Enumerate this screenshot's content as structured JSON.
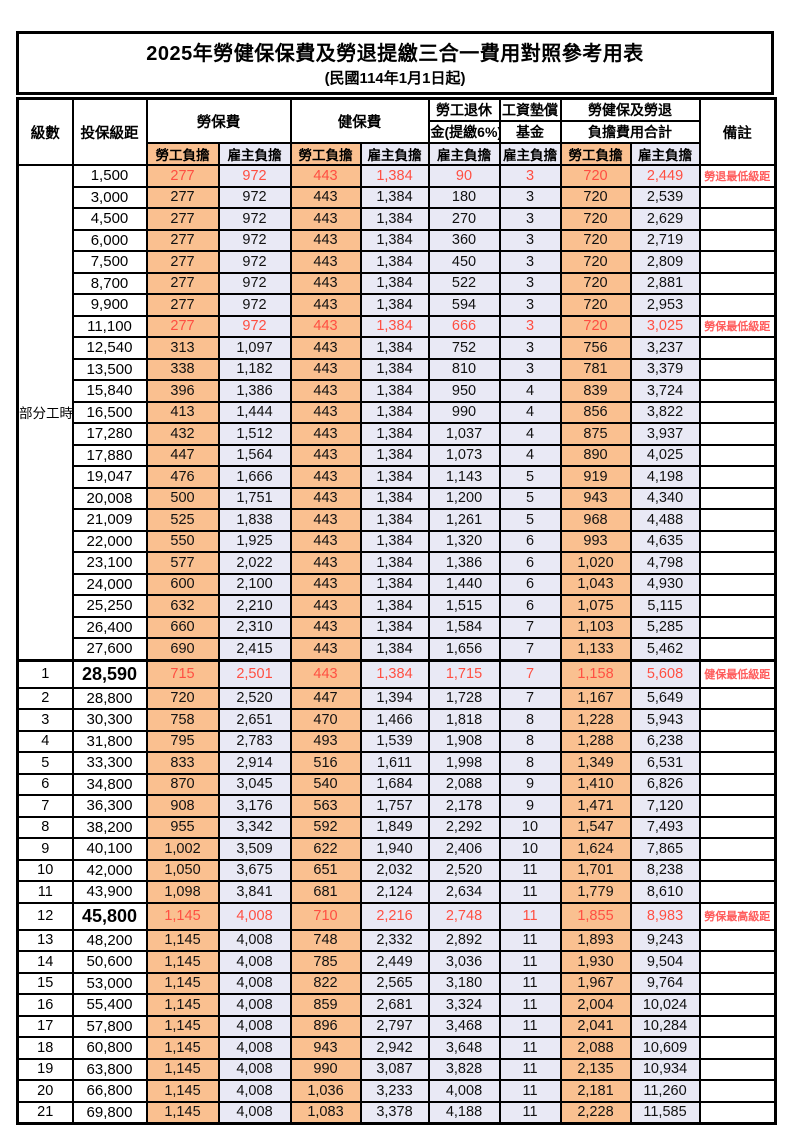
{
  "page": {
    "title": "2025年勞健保保費及勞退提繳三合一費用對照參考用表",
    "subtitle": "(民國114年1月1日起)"
  },
  "colors": {
    "employee_fill": "#FAC090",
    "employer_fill": "#E9E9F5",
    "highlight_text": "#FF4F42",
    "remark_text": "#FF5C5C",
    "border": "#000000"
  },
  "header": {
    "level": "級數",
    "bracket": "投保級距",
    "labor_insurance": "勞保費",
    "health_insurance": "健保費",
    "pension_line1": "勞工退休",
    "pension_line2": "金(提繳6%)",
    "wage_fund_line1": "工資墊償",
    "wage_fund_line2": "基金",
    "total_line1": "勞健保及勞退",
    "total_line2": "負擔費用合計",
    "remark": "備註",
    "employee": "勞工負擔",
    "employer": "雇主負擔"
  },
  "part_time_label": "部分工時",
  "part_time_rowspan": 23,
  "rows": [
    {
      "level": "",
      "bracket": "1,500",
      "values": [
        "277",
        "972",
        "443",
        "1,384",
        "90",
        "3",
        "720",
        "2,449"
      ],
      "remark": "勞退最低級距",
      "highlight": true,
      "big": false
    },
    {
      "level": "",
      "bracket": "3,000",
      "values": [
        "277",
        "972",
        "443",
        "1,384",
        "180",
        "3",
        "720",
        "2,539"
      ],
      "remark": "",
      "highlight": false,
      "big": false
    },
    {
      "level": "",
      "bracket": "4,500",
      "values": [
        "277",
        "972",
        "443",
        "1,384",
        "270",
        "3",
        "720",
        "2,629"
      ],
      "remark": "",
      "highlight": false,
      "big": false
    },
    {
      "level": "",
      "bracket": "6,000",
      "values": [
        "277",
        "972",
        "443",
        "1,384",
        "360",
        "3",
        "720",
        "2,719"
      ],
      "remark": "",
      "highlight": false,
      "big": false
    },
    {
      "level": "",
      "bracket": "7,500",
      "values": [
        "277",
        "972",
        "443",
        "1,384",
        "450",
        "3",
        "720",
        "2,809"
      ],
      "remark": "",
      "highlight": false,
      "big": false
    },
    {
      "level": "",
      "bracket": "8,700",
      "values": [
        "277",
        "972",
        "443",
        "1,384",
        "522",
        "3",
        "720",
        "2,881"
      ],
      "remark": "",
      "highlight": false,
      "big": false
    },
    {
      "level": "",
      "bracket": "9,900",
      "values": [
        "277",
        "972",
        "443",
        "1,384",
        "594",
        "3",
        "720",
        "2,953"
      ],
      "remark": "",
      "highlight": false,
      "big": false
    },
    {
      "level": "",
      "bracket": "11,100",
      "values": [
        "277",
        "972",
        "443",
        "1,384",
        "666",
        "3",
        "720",
        "3,025"
      ],
      "remark": "勞保最低級距",
      "highlight": true,
      "big": false
    },
    {
      "level": "",
      "bracket": "12,540",
      "values": [
        "313",
        "1,097",
        "443",
        "1,384",
        "752",
        "3",
        "756",
        "3,237"
      ],
      "remark": "",
      "highlight": false,
      "big": false
    },
    {
      "level": "",
      "bracket": "13,500",
      "values": [
        "338",
        "1,182",
        "443",
        "1,384",
        "810",
        "3",
        "781",
        "3,379"
      ],
      "remark": "",
      "highlight": false,
      "big": false
    },
    {
      "level": "",
      "bracket": "15,840",
      "values": [
        "396",
        "1,386",
        "443",
        "1,384",
        "950",
        "4",
        "839",
        "3,724"
      ],
      "remark": "",
      "highlight": false,
      "big": false
    },
    {
      "level": "",
      "bracket": "16,500",
      "values": [
        "413",
        "1,444",
        "443",
        "1,384",
        "990",
        "4",
        "856",
        "3,822"
      ],
      "remark": "",
      "highlight": false,
      "big": false
    },
    {
      "level": "",
      "bracket": "17,280",
      "values": [
        "432",
        "1,512",
        "443",
        "1,384",
        "1,037",
        "4",
        "875",
        "3,937"
      ],
      "remark": "",
      "highlight": false,
      "big": false
    },
    {
      "level": "",
      "bracket": "17,880",
      "values": [
        "447",
        "1,564",
        "443",
        "1,384",
        "1,073",
        "4",
        "890",
        "4,025"
      ],
      "remark": "",
      "highlight": false,
      "big": false
    },
    {
      "level": "",
      "bracket": "19,047",
      "values": [
        "476",
        "1,666",
        "443",
        "1,384",
        "1,143",
        "5",
        "919",
        "4,198"
      ],
      "remark": "",
      "highlight": false,
      "big": false
    },
    {
      "level": "",
      "bracket": "20,008",
      "values": [
        "500",
        "1,751",
        "443",
        "1,384",
        "1,200",
        "5",
        "943",
        "4,340"
      ],
      "remark": "",
      "highlight": false,
      "big": false
    },
    {
      "level": "",
      "bracket": "21,009",
      "values": [
        "525",
        "1,838",
        "443",
        "1,384",
        "1,261",
        "5",
        "968",
        "4,488"
      ],
      "remark": "",
      "highlight": false,
      "big": false
    },
    {
      "level": "",
      "bracket": "22,000",
      "values": [
        "550",
        "1,925",
        "443",
        "1,384",
        "1,320",
        "6",
        "993",
        "4,635"
      ],
      "remark": "",
      "highlight": false,
      "big": false
    },
    {
      "level": "",
      "bracket": "23,100",
      "values": [
        "577",
        "2,022",
        "443",
        "1,384",
        "1,386",
        "6",
        "1,020",
        "4,798"
      ],
      "remark": "",
      "highlight": false,
      "big": false
    },
    {
      "level": "",
      "bracket": "24,000",
      "values": [
        "600",
        "2,100",
        "443",
        "1,384",
        "1,440",
        "6",
        "1,043",
        "4,930"
      ],
      "remark": "",
      "highlight": false,
      "big": false
    },
    {
      "level": "",
      "bracket": "25,250",
      "values": [
        "632",
        "2,210",
        "443",
        "1,384",
        "1,515",
        "6",
        "1,075",
        "5,115"
      ],
      "remark": "",
      "highlight": false,
      "big": false
    },
    {
      "level": "",
      "bracket": "26,400",
      "values": [
        "660",
        "2,310",
        "443",
        "1,384",
        "1,584",
        "7",
        "1,103",
        "5,285"
      ],
      "remark": "",
      "highlight": false,
      "big": false
    },
    {
      "level": "",
      "bracket": "27,600",
      "values": [
        "690",
        "2,415",
        "443",
        "1,384",
        "1,656",
        "7",
        "1,133",
        "5,462"
      ],
      "remark": "",
      "highlight": false,
      "big": false
    },
    {
      "level": "1",
      "bracket": "28,590",
      "values": [
        "715",
        "2,501",
        "443",
        "1,384",
        "1,715",
        "7",
        "1,158",
        "5,608"
      ],
      "remark": "健保最低級距",
      "highlight": true,
      "big": true
    },
    {
      "level": "2",
      "bracket": "28,800",
      "values": [
        "720",
        "2,520",
        "447",
        "1,394",
        "1,728",
        "7",
        "1,167",
        "5,649"
      ],
      "remark": "",
      "highlight": false,
      "big": false
    },
    {
      "level": "3",
      "bracket": "30,300",
      "values": [
        "758",
        "2,651",
        "470",
        "1,466",
        "1,818",
        "8",
        "1,228",
        "5,943"
      ],
      "remark": "",
      "highlight": false,
      "big": false
    },
    {
      "level": "4",
      "bracket": "31,800",
      "values": [
        "795",
        "2,783",
        "493",
        "1,539",
        "1,908",
        "8",
        "1,288",
        "6,238"
      ],
      "remark": "",
      "highlight": false,
      "big": false
    },
    {
      "level": "5",
      "bracket": "33,300",
      "values": [
        "833",
        "2,914",
        "516",
        "1,611",
        "1,998",
        "8",
        "1,349",
        "6,531"
      ],
      "remark": "",
      "highlight": false,
      "big": false
    },
    {
      "level": "6",
      "bracket": "34,800",
      "values": [
        "870",
        "3,045",
        "540",
        "1,684",
        "2,088",
        "9",
        "1,410",
        "6,826"
      ],
      "remark": "",
      "highlight": false,
      "big": false
    },
    {
      "level": "7",
      "bracket": "36,300",
      "values": [
        "908",
        "3,176",
        "563",
        "1,757",
        "2,178",
        "9",
        "1,471",
        "7,120"
      ],
      "remark": "",
      "highlight": false,
      "big": false
    },
    {
      "level": "8",
      "bracket": "38,200",
      "values": [
        "955",
        "3,342",
        "592",
        "1,849",
        "2,292",
        "10",
        "1,547",
        "7,493"
      ],
      "remark": "",
      "highlight": false,
      "big": false
    },
    {
      "level": "9",
      "bracket": "40,100",
      "values": [
        "1,002",
        "3,509",
        "622",
        "1,940",
        "2,406",
        "10",
        "1,624",
        "7,865"
      ],
      "remark": "",
      "highlight": false,
      "big": false
    },
    {
      "level": "10",
      "bracket": "42,000",
      "values": [
        "1,050",
        "3,675",
        "651",
        "2,032",
        "2,520",
        "11",
        "1,701",
        "8,238"
      ],
      "remark": "",
      "highlight": false,
      "big": false
    },
    {
      "level": "11",
      "bracket": "43,900",
      "values": [
        "1,098",
        "3,841",
        "681",
        "2,124",
        "2,634",
        "11",
        "1,779",
        "8,610"
      ],
      "remark": "",
      "highlight": false,
      "big": false
    },
    {
      "level": "12",
      "bracket": "45,800",
      "values": [
        "1,145",
        "4,008",
        "710",
        "2,216",
        "2,748",
        "11",
        "1,855",
        "8,983"
      ],
      "remark": "勞保最高級距",
      "highlight": true,
      "big": true
    },
    {
      "level": "13",
      "bracket": "48,200",
      "values": [
        "1,145",
        "4,008",
        "748",
        "2,332",
        "2,892",
        "11",
        "1,893",
        "9,243"
      ],
      "remark": "",
      "highlight": false,
      "big": false
    },
    {
      "level": "14",
      "bracket": "50,600",
      "values": [
        "1,145",
        "4,008",
        "785",
        "2,449",
        "3,036",
        "11",
        "1,930",
        "9,504"
      ],
      "remark": "",
      "highlight": false,
      "big": false
    },
    {
      "level": "15",
      "bracket": "53,000",
      "values": [
        "1,145",
        "4,008",
        "822",
        "2,565",
        "3,180",
        "11",
        "1,967",
        "9,764"
      ],
      "remark": "",
      "highlight": false,
      "big": false
    },
    {
      "level": "16",
      "bracket": "55,400",
      "values": [
        "1,145",
        "4,008",
        "859",
        "2,681",
        "3,324",
        "11",
        "2,004",
        "10,024"
      ],
      "remark": "",
      "highlight": false,
      "big": false
    },
    {
      "level": "17",
      "bracket": "57,800",
      "values": [
        "1,145",
        "4,008",
        "896",
        "2,797",
        "3,468",
        "11",
        "2,041",
        "10,284"
      ],
      "remark": "",
      "highlight": false,
      "big": false
    },
    {
      "level": "18",
      "bracket": "60,800",
      "values": [
        "1,145",
        "4,008",
        "943",
        "2,942",
        "3,648",
        "11",
        "2,088",
        "10,609"
      ],
      "remark": "",
      "highlight": false,
      "big": false
    },
    {
      "level": "19",
      "bracket": "63,800",
      "values": [
        "1,145",
        "4,008",
        "990",
        "3,087",
        "3,828",
        "11",
        "2,135",
        "10,934"
      ],
      "remark": "",
      "highlight": false,
      "big": false
    },
    {
      "level": "20",
      "bracket": "66,800",
      "values": [
        "1,145",
        "4,008",
        "1,036",
        "3,233",
        "4,008",
        "11",
        "2,181",
        "11,260"
      ],
      "remark": "",
      "highlight": false,
      "big": false
    },
    {
      "level": "21",
      "bracket": "69,800",
      "values": [
        "1,145",
        "4,008",
        "1,083",
        "3,378",
        "4,188",
        "11",
        "2,228",
        "11,585"
      ],
      "remark": "",
      "highlight": false,
      "big": false
    }
  ]
}
